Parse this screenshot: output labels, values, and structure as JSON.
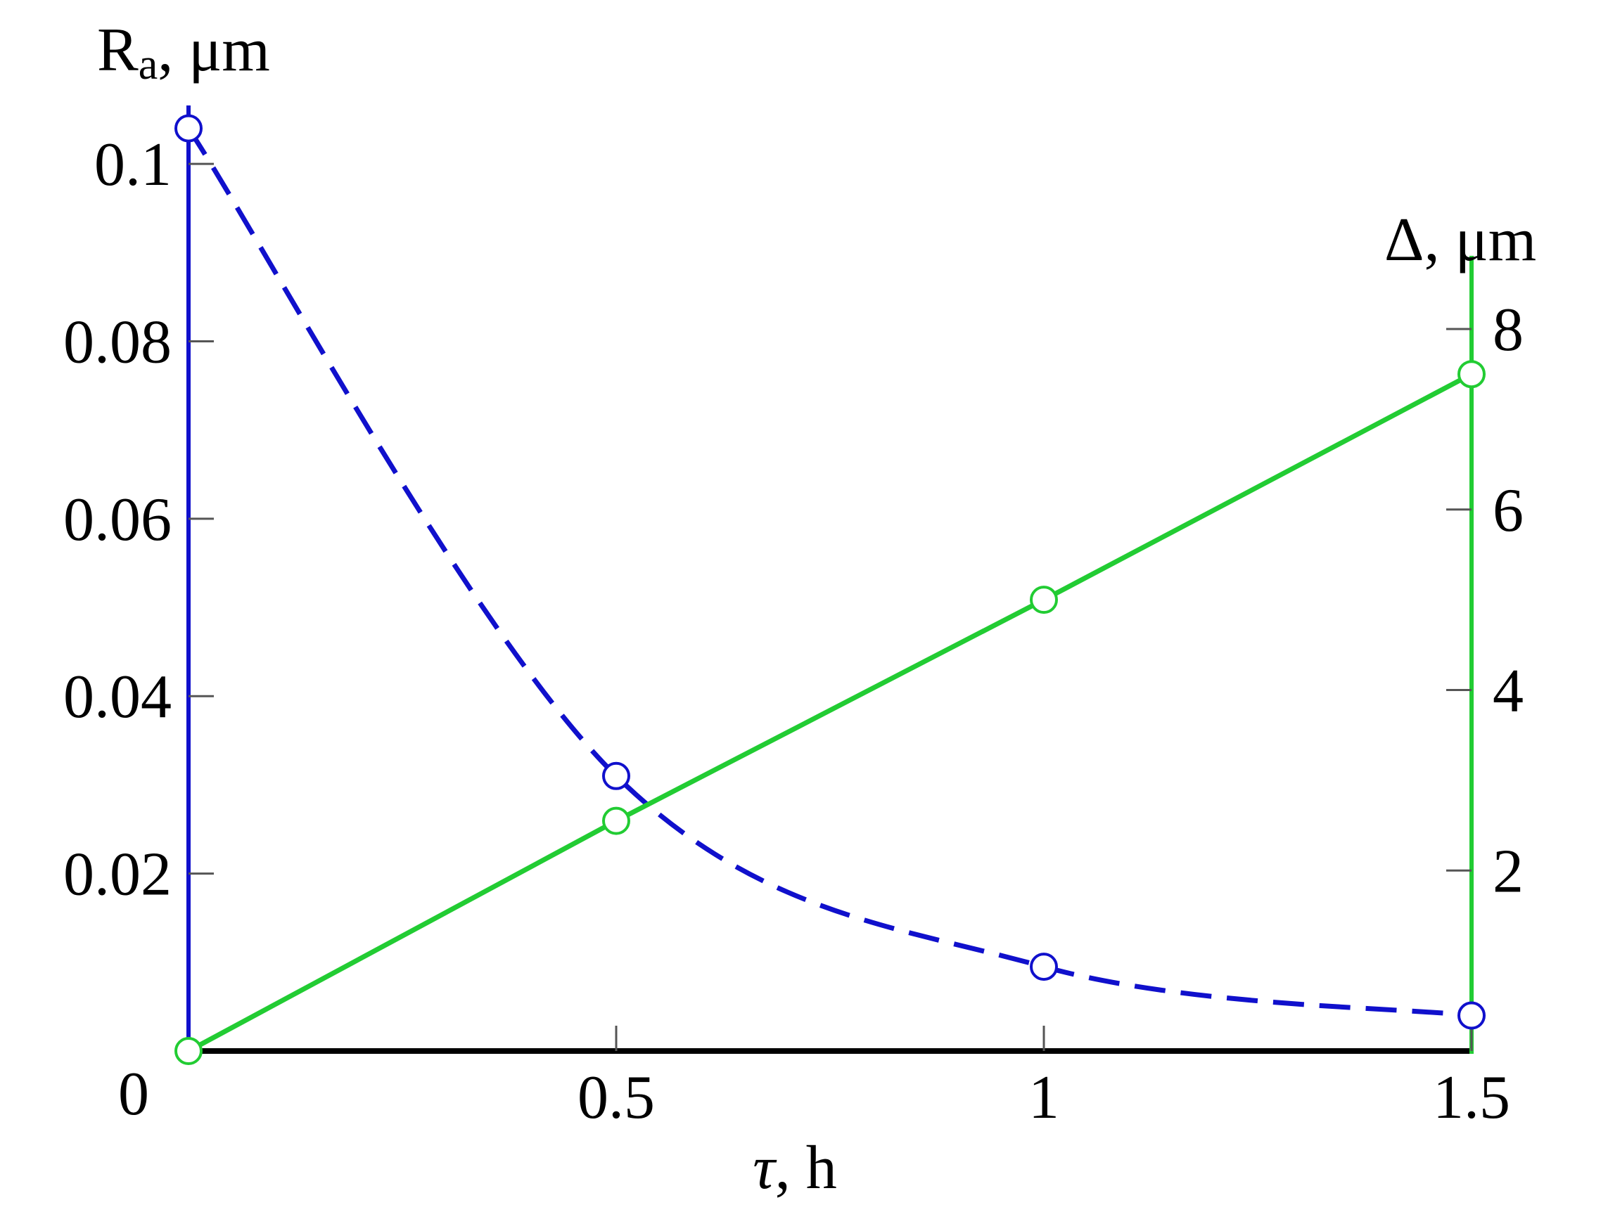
{
  "chart_data": {
    "type": "line",
    "x": [
      0,
      0.5,
      1,
      1.5
    ],
    "x_ticks": [
      "0.5",
      "1",
      "1.5"
    ],
    "xlim": [
      0,
      1.5
    ],
    "origin_label": "0",
    "xlabel": {
      "symbol": "τ",
      "rest": ", h"
    },
    "left_axis": {
      "label_main": "R",
      "label_sub": "a",
      "label_unit": ", μm",
      "ylim": [
        0,
        0.105
      ],
      "ticks": [
        0.02,
        0.04,
        0.06,
        0.08,
        0.1
      ],
      "tick_labels": [
        "0.02",
        "0.04",
        "0.06",
        "0.08",
        "0.1"
      ],
      "color": "#1010cc"
    },
    "right_axis": {
      "label": "Δ, μm",
      "ylim": [
        0,
        8.5
      ],
      "ticks": [
        2,
        4,
        6,
        8
      ],
      "tick_labels": [
        "2",
        "4",
        "6",
        "8"
      ],
      "color": "#22cc33"
    },
    "series": [
      {
        "axis": "left",
        "style": "dashed",
        "smooth": true,
        "marker": "open-circle",
        "color": "#1010cc",
        "values": [
          0.104,
          0.031,
          0.0095,
          0.004
        ]
      },
      {
        "axis": "right",
        "style": "solid",
        "smooth": false,
        "marker": "open-circle",
        "color": "#22cc33",
        "values": [
          0,
          2.55,
          5.0,
          7.5
        ]
      }
    ],
    "grid": false
  }
}
